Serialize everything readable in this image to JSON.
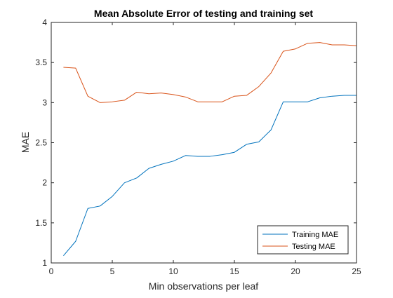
{
  "chart_data": {
    "type": "line",
    "title": "Mean Absolute Error of testing and training set",
    "xlabel": "Min observations per leaf",
    "ylabel": "MAE",
    "xlim": [
      0,
      25
    ],
    "ylim": [
      1,
      4
    ],
    "xticks": [
      0,
      5,
      10,
      15,
      20,
      25
    ],
    "yticks": [
      1,
      1.5,
      2,
      2.5,
      3,
      3.5,
      4
    ],
    "xtick_labels": [
      "0",
      "5",
      "10",
      "15",
      "20",
      "25"
    ],
    "ytick_labels": [
      "1",
      "1.5",
      "2",
      "2.5",
      "3",
      "3.5",
      "4"
    ],
    "grid": false,
    "legend_position": "bottom-right",
    "x": [
      1,
      2,
      3,
      4,
      5,
      6,
      7,
      8,
      9,
      10,
      11,
      12,
      13,
      14,
      15,
      16,
      17,
      18,
      19,
      20,
      21,
      22,
      23,
      24,
      25
    ],
    "series": [
      {
        "name": "Training MAE",
        "color": "#0072BD",
        "values": [
          1.09,
          1.27,
          1.68,
          1.71,
          1.83,
          2.0,
          2.06,
          2.18,
          2.23,
          2.27,
          2.34,
          2.33,
          2.33,
          2.35,
          2.38,
          2.48,
          2.51,
          2.66,
          3.01,
          3.01,
          3.01,
          3.06,
          3.08,
          3.09,
          3.09
        ]
      },
      {
        "name": "Testing MAE",
        "color": "#D95319",
        "values": [
          3.44,
          3.43,
          3.08,
          3.0,
          3.01,
          3.03,
          3.13,
          3.11,
          3.12,
          3.1,
          3.07,
          3.01,
          3.01,
          3.01,
          3.08,
          3.09,
          3.2,
          3.37,
          3.64,
          3.67,
          3.74,
          3.75,
          3.72,
          3.72,
          3.71
        ]
      }
    ]
  }
}
